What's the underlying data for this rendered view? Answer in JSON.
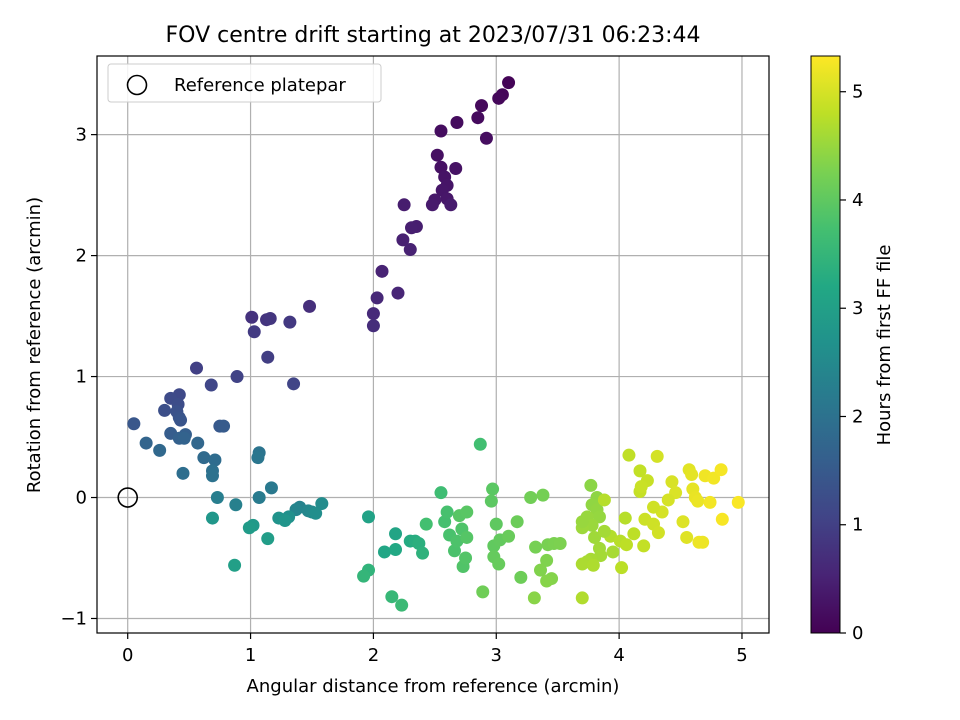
{
  "chart_data": {
    "type": "scatter",
    "title": "FOV centre drift starting at 2023/07/31 06:23:44",
    "xlabel": "Angular distance from reference (arcmin)",
    "ylabel": "Rotation from reference (arcmin)",
    "colorbar_label": "Hours from first FF file",
    "xlim": [
      -0.25,
      5.22
    ],
    "ylim": [
      -1.12,
      3.65
    ],
    "x_ticks": [
      0,
      1,
      2,
      3,
      4,
      5
    ],
    "y_ticks": [
      -1,
      0,
      1,
      2,
      3
    ],
    "colorbar_ticks": [
      0,
      1,
      2,
      3,
      4,
      5
    ],
    "colorbar_range": [
      0,
      5.33
    ],
    "colormap": "viridis",
    "grid": true,
    "legend": {
      "placement": "top-left",
      "entries": [
        {
          "label": "Reference platepar",
          "marker": "open-circle",
          "x": 0,
          "y": 0
        }
      ]
    },
    "points": [
      [
        3.1,
        3.43,
        0.05
      ],
      [
        3.05,
        3.33,
        0.08
      ],
      [
        3.02,
        3.3,
        0.1
      ],
      [
        2.88,
        3.24,
        0.12
      ],
      [
        2.85,
        3.14,
        0.14
      ],
      [
        2.68,
        3.1,
        0.16
      ],
      [
        2.55,
        3.03,
        0.18
      ],
      [
        2.92,
        2.97,
        0.2
      ],
      [
        2.52,
        2.83,
        0.22
      ],
      [
        2.55,
        2.73,
        0.24
      ],
      [
        2.67,
        2.72,
        0.26
      ],
      [
        2.58,
        2.65,
        0.28
      ],
      [
        2.6,
        2.58,
        0.3
      ],
      [
        2.56,
        2.54,
        0.32
      ],
      [
        2.6,
        2.47,
        0.34
      ],
      [
        2.5,
        2.46,
        0.36
      ],
      [
        2.48,
        2.42,
        0.38
      ],
      [
        2.63,
        2.42,
        0.4
      ],
      [
        2.25,
        2.42,
        0.42
      ],
      [
        2.35,
        2.24,
        0.44
      ],
      [
        2.31,
        2.23,
        0.46
      ],
      [
        2.24,
        2.13,
        0.48
      ],
      [
        2.3,
        2.05,
        0.5
      ],
      [
        2.07,
        1.87,
        0.52
      ],
      [
        2.2,
        1.69,
        0.56
      ],
      [
        2.03,
        1.65,
        0.6
      ],
      [
        2.0,
        1.52,
        0.64
      ],
      [
        2.0,
        1.42,
        0.68
      ],
      [
        1.48,
        1.58,
        0.72
      ],
      [
        1.01,
        1.49,
        0.76
      ],
      [
        1.13,
        1.47,
        0.8
      ],
      [
        1.16,
        1.48,
        0.84
      ],
      [
        1.32,
        1.45,
        0.88
      ],
      [
        1.03,
        1.37,
        0.92
      ],
      [
        1.14,
        1.16,
        0.96
      ],
      [
        0.56,
        1.07,
        1.0
      ],
      [
        0.89,
        1.0,
        1.05
      ],
      [
        1.35,
        0.94,
        1.08
      ],
      [
        0.68,
        0.93,
        1.12
      ],
      [
        0.42,
        0.85,
        1.16
      ],
      [
        0.35,
        0.82,
        1.2
      ],
      [
        0.41,
        0.77,
        1.24
      ],
      [
        0.3,
        0.72,
        1.28
      ],
      [
        0.4,
        0.71,
        1.32
      ],
      [
        0.42,
        0.66,
        1.36
      ],
      [
        0.43,
        0.64,
        1.4
      ],
      [
        0.05,
        0.61,
        1.44
      ],
      [
        0.75,
        0.59,
        1.48
      ],
      [
        0.78,
        0.59,
        1.52
      ],
      [
        0.35,
        0.53,
        1.56
      ],
      [
        0.47,
        0.52,
        1.6
      ],
      [
        0.42,
        0.49,
        1.64
      ],
      [
        0.46,
        0.49,
        1.68
      ],
      [
        0.15,
        0.45,
        1.72
      ],
      [
        0.57,
        0.45,
        1.76
      ],
      [
        0.26,
        0.39,
        1.8
      ],
      [
        0.62,
        0.33,
        1.84
      ],
      [
        0.71,
        0.31,
        1.88
      ],
      [
        0.45,
        0.2,
        1.92
      ],
      [
        0.69,
        0.22,
        1.96
      ],
      [
        0.69,
        0.18,
        2.0
      ],
      [
        1.07,
        0.37,
        2.05
      ],
      [
        1.06,
        0.33,
        2.1
      ],
      [
        1.17,
        0.08,
        2.15
      ],
      [
        1.07,
        0.0,
        2.2
      ],
      [
        0.73,
        0.0,
        2.25
      ],
      [
        0.88,
        -0.06,
        2.3
      ],
      [
        1.4,
        -0.08,
        2.35
      ],
      [
        1.37,
        -0.1,
        2.4
      ],
      [
        1.47,
        -0.11,
        2.45
      ],
      [
        1.5,
        -0.12,
        2.5
      ],
      [
        1.58,
        -0.05,
        2.55
      ],
      [
        1.53,
        -0.13,
        2.6
      ],
      [
        1.31,
        -0.16,
        2.65
      ],
      [
        1.23,
        -0.17,
        2.7
      ],
      [
        1.28,
        -0.19,
        2.75
      ],
      [
        0.69,
        -0.17,
        2.8
      ],
      [
        1.02,
        -0.23,
        2.85
      ],
      [
        0.99,
        -0.25,
        2.9
      ],
      [
        1.14,
        -0.34,
        2.95
      ],
      [
        0.87,
        -0.56,
        3.0
      ],
      [
        1.96,
        -0.16,
        3.05
      ],
      [
        2.18,
        -0.3,
        3.1
      ],
      [
        2.09,
        -0.45,
        3.15
      ],
      [
        2.18,
        -0.43,
        3.2
      ],
      [
        2.3,
        -0.36,
        3.25
      ],
      [
        2.34,
        -0.36,
        3.3
      ],
      [
        2.37,
        -0.38,
        3.35
      ],
      [
        2.4,
        -0.46,
        3.4
      ],
      [
        1.96,
        -0.6,
        3.45
      ],
      [
        1.92,
        -0.65,
        3.5
      ],
      [
        2.15,
        -0.82,
        3.55
      ],
      [
        2.23,
        -0.89,
        3.6
      ],
      [
        2.55,
        0.04,
        3.65
      ],
      [
        2.87,
        0.44,
        3.7
      ],
      [
        2.43,
        -0.22,
        3.72
      ],
      [
        2.58,
        -0.2,
        3.74
      ],
      [
        2.6,
        -0.12,
        3.76
      ],
      [
        2.62,
        -0.31,
        3.78
      ],
      [
        2.66,
        -0.44,
        3.8
      ],
      [
        2.68,
        -0.36,
        3.82
      ],
      [
        2.72,
        -0.26,
        3.84
      ],
      [
        2.73,
        -0.57,
        3.86
      ],
      [
        2.75,
        -0.5,
        3.88
      ],
      [
        2.76,
        -0.33,
        3.9
      ],
      [
        2.7,
        -0.15,
        3.92
      ],
      [
        2.76,
        -0.12,
        3.94
      ],
      [
        2.97,
        0.07,
        3.96
      ],
      [
        2.96,
        -0.03,
        3.98
      ],
      [
        3.0,
        -0.22,
        4.0
      ],
      [
        2.98,
        -0.4,
        4.02
      ],
      [
        3.03,
        -0.35,
        4.04
      ],
      [
        2.98,
        -0.49,
        4.06
      ],
      [
        3.02,
        -0.55,
        4.08
      ],
      [
        3.1,
        -0.32,
        4.1
      ],
      [
        3.17,
        -0.2,
        4.12
      ],
      [
        3.2,
        -0.66,
        4.14
      ],
      [
        2.89,
        -0.78,
        4.16
      ],
      [
        3.28,
        0.0,
        4.18
      ],
      [
        3.38,
        0.02,
        4.2
      ],
      [
        3.32,
        -0.41,
        4.22
      ],
      [
        3.42,
        -0.39,
        4.24
      ],
      [
        3.47,
        -0.38,
        4.26
      ],
      [
        3.52,
        -0.38,
        4.28
      ],
      [
        3.41,
        -0.52,
        4.3
      ],
      [
        3.36,
        -0.6,
        4.32
      ],
      [
        3.45,
        -0.67,
        4.34
      ],
      [
        3.41,
        -0.69,
        4.36
      ],
      [
        3.31,
        -0.83,
        4.38
      ],
      [
        3.77,
        0.1,
        4.4
      ],
      [
        3.82,
        0.0,
        4.42
      ],
      [
        3.78,
        -0.06,
        4.44
      ],
      [
        3.82,
        -0.1,
        4.46
      ],
      [
        3.84,
        -0.16,
        4.48
      ],
      [
        3.74,
        -0.16,
        4.5
      ],
      [
        3.78,
        -0.23,
        4.52
      ],
      [
        3.7,
        -0.25,
        4.54
      ],
      [
        3.8,
        -0.33,
        4.56
      ],
      [
        3.84,
        -0.42,
        4.58
      ],
      [
        3.85,
        -0.48,
        4.6
      ],
      [
        3.77,
        -0.51,
        4.62
      ],
      [
        3.74,
        -0.53,
        4.64
      ],
      [
        3.7,
        -0.55,
        4.66
      ],
      [
        3.79,
        -0.56,
        4.68
      ],
      [
        3.7,
        -0.83,
        4.7
      ],
      [
        3.93,
        -0.32,
        4.72
      ],
      [
        3.88,
        -0.02,
        4.74
      ],
      [
        4.01,
        -0.36,
        4.76
      ],
      [
        4.02,
        -0.58,
        4.78
      ],
      [
        4.06,
        -0.39,
        4.8
      ],
      [
        4.08,
        0.35,
        4.82
      ],
      [
        4.17,
        0.22,
        4.84
      ],
      [
        4.17,
        0.05,
        4.86
      ],
      [
        4.23,
        0.14,
        4.88
      ],
      [
        4.18,
        0.09,
        4.9
      ],
      [
        4.21,
        -0.18,
        4.92
      ],
      [
        4.28,
        -0.22,
        4.94
      ],
      [
        4.32,
        -0.29,
        4.96
      ],
      [
        4.31,
        0.34,
        4.98
      ],
      [
        4.35,
        -0.12,
        5.0
      ],
      [
        4.43,
        0.13,
        5.02
      ],
      [
        4.46,
        0.04,
        5.04
      ],
      [
        4.52,
        -0.2,
        5.06
      ],
      [
        4.55,
        -0.33,
        5.08
      ],
      [
        4.57,
        0.23,
        5.1
      ],
      [
        4.59,
        0.19,
        5.12
      ],
      [
        4.6,
        0.07,
        5.14
      ],
      [
        4.62,
        0.0,
        5.16
      ],
      [
        4.64,
        -0.03,
        5.18
      ],
      [
        4.68,
        -0.37,
        5.2
      ],
      [
        4.7,
        0.18,
        5.22
      ],
      [
        4.77,
        0.16,
        5.24
      ],
      [
        4.83,
        0.23,
        5.26
      ],
      [
        4.84,
        -0.18,
        5.28
      ],
      [
        4.97,
        -0.04,
        5.3
      ],
      [
        3.7,
        -0.2,
        4.5
      ],
      [
        3.88,
        -0.28,
        4.6
      ],
      [
        3.95,
        -0.45,
        4.62
      ],
      [
        4.05,
        -0.17,
        4.75
      ],
      [
        4.12,
        -0.3,
        4.8
      ],
      [
        4.2,
        -0.4,
        4.85
      ],
      [
        4.28,
        -0.08,
        4.95
      ],
      [
        4.4,
        -0.02,
        5.0
      ],
      [
        4.65,
        -0.37,
        5.2
      ],
      [
        4.74,
        -0.04,
        5.25
      ]
    ]
  }
}
